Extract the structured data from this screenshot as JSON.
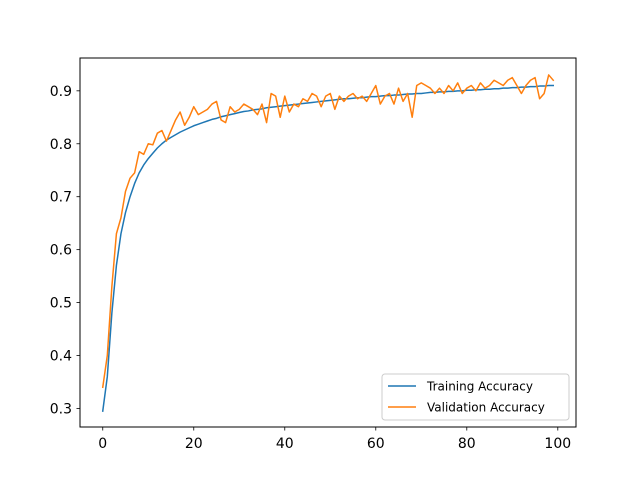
{
  "chart_data": {
    "type": "line",
    "title": "",
    "xlabel": "",
    "ylabel": "",
    "xlim": [
      -5,
      104
    ],
    "ylim": [
      0.265,
      0.962
    ],
    "xticks": [
      0,
      20,
      40,
      60,
      80,
      100
    ],
    "yticks": [
      0.3,
      0.4,
      0.5,
      0.6,
      0.7,
      0.8,
      0.9
    ],
    "grid": false,
    "legend_position": "lower-right",
    "series": [
      {
        "name": "Training Accuracy",
        "color": "#1f77b4",
        "x": [
          0,
          1,
          2,
          3,
          4,
          5,
          6,
          7,
          8,
          9,
          10,
          11,
          12,
          13,
          14,
          15,
          16,
          17,
          18,
          19,
          20,
          21,
          22,
          23,
          24,
          25,
          26,
          27,
          28,
          29,
          30,
          31,
          32,
          33,
          34,
          35,
          36,
          37,
          38,
          39,
          40,
          41,
          42,
          43,
          44,
          45,
          46,
          47,
          48,
          49,
          50,
          51,
          52,
          53,
          54,
          55,
          56,
          57,
          58,
          59,
          60,
          61,
          62,
          63,
          64,
          65,
          66,
          67,
          68,
          69,
          70,
          71,
          72,
          73,
          74,
          75,
          76,
          77,
          78,
          79,
          80,
          81,
          82,
          83,
          84,
          85,
          86,
          87,
          88,
          89,
          90,
          91,
          92,
          93,
          94,
          95,
          96,
          97,
          98,
          99
        ],
        "y": [
          0.295,
          0.36,
          0.48,
          0.57,
          0.63,
          0.67,
          0.7,
          0.725,
          0.745,
          0.76,
          0.772,
          0.782,
          0.792,
          0.8,
          0.807,
          0.812,
          0.817,
          0.822,
          0.826,
          0.83,
          0.834,
          0.837,
          0.84,
          0.843,
          0.846,
          0.848,
          0.851,
          0.853,
          0.855,
          0.857,
          0.859,
          0.861,
          0.862,
          0.864,
          0.865,
          0.866,
          0.868,
          0.869,
          0.87,
          0.871,
          0.872,
          0.873,
          0.874,
          0.875,
          0.876,
          0.877,
          0.878,
          0.879,
          0.88,
          0.881,
          0.882,
          0.883,
          0.884,
          0.885,
          0.885,
          0.886,
          0.887,
          0.887,
          0.888,
          0.889,
          0.889,
          0.89,
          0.891,
          0.891,
          0.892,
          0.892,
          0.893,
          0.894,
          0.894,
          0.895,
          0.895,
          0.896,
          0.897,
          0.897,
          0.898,
          0.898,
          0.899,
          0.899,
          0.9,
          0.9,
          0.901,
          0.901,
          0.902,
          0.902,
          0.903,
          0.903,
          0.904,
          0.904,
          0.905,
          0.905,
          0.906,
          0.906,
          0.907,
          0.907,
          0.908,
          0.908,
          0.909,
          0.909,
          0.91,
          0.91
        ]
      },
      {
        "name": "Validation Accuracy",
        "color": "#ff7f0e",
        "x": [
          0,
          1,
          2,
          3,
          4,
          5,
          6,
          7,
          8,
          9,
          10,
          11,
          12,
          13,
          14,
          15,
          16,
          17,
          18,
          19,
          20,
          21,
          22,
          23,
          24,
          25,
          26,
          27,
          28,
          29,
          30,
          31,
          32,
          33,
          34,
          35,
          36,
          37,
          38,
          39,
          40,
          41,
          42,
          43,
          44,
          45,
          46,
          47,
          48,
          49,
          50,
          51,
          52,
          53,
          54,
          55,
          56,
          57,
          58,
          59,
          60,
          61,
          62,
          63,
          64,
          65,
          66,
          67,
          68,
          69,
          70,
          71,
          72,
          73,
          74,
          75,
          76,
          77,
          78,
          79,
          80,
          81,
          82,
          83,
          84,
          85,
          86,
          87,
          88,
          89,
          90,
          91,
          92,
          93,
          94,
          95,
          96,
          97,
          98,
          99
        ],
        "y": [
          0.34,
          0.4,
          0.53,
          0.63,
          0.66,
          0.71,
          0.735,
          0.745,
          0.785,
          0.78,
          0.8,
          0.798,
          0.82,
          0.825,
          0.805,
          0.825,
          0.845,
          0.86,
          0.835,
          0.85,
          0.87,
          0.855,
          0.86,
          0.865,
          0.875,
          0.88,
          0.845,
          0.84,
          0.87,
          0.86,
          0.865,
          0.875,
          0.87,
          0.865,
          0.855,
          0.875,
          0.84,
          0.895,
          0.89,
          0.85,
          0.89,
          0.86,
          0.875,
          0.87,
          0.885,
          0.88,
          0.895,
          0.89,
          0.87,
          0.89,
          0.895,
          0.865,
          0.89,
          0.88,
          0.89,
          0.895,
          0.885,
          0.89,
          0.88,
          0.895,
          0.91,
          0.875,
          0.89,
          0.895,
          0.875,
          0.905,
          0.88,
          0.895,
          0.85,
          0.91,
          0.915,
          0.91,
          0.905,
          0.895,
          0.905,
          0.895,
          0.91,
          0.9,
          0.915,
          0.895,
          0.905,
          0.91,
          0.9,
          0.915,
          0.905,
          0.91,
          0.92,
          0.915,
          0.91,
          0.92,
          0.925,
          0.91,
          0.895,
          0.91,
          0.92,
          0.925,
          0.885,
          0.895,
          0.93,
          0.92
        ]
      }
    ]
  }
}
